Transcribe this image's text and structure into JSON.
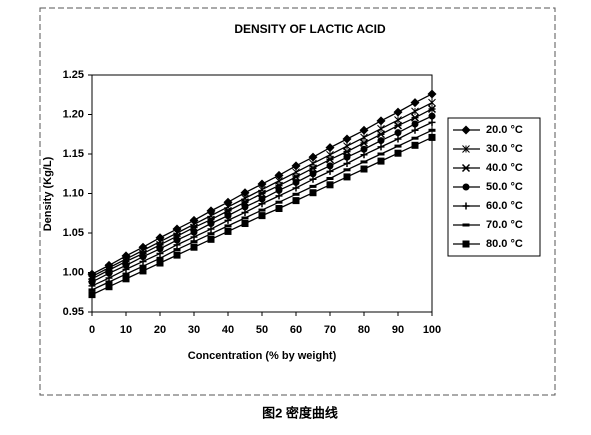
{
  "chart_data": {
    "type": "line",
    "title": "DENSITY OF LACTIC ACID",
    "x_label": "Concentration (% by weight)",
    "y_label": "Density (Kg/L)",
    "caption": "图2  密度曲线",
    "x": [
      0,
      5,
      10,
      15,
      20,
      25,
      30,
      35,
      40,
      45,
      50,
      55,
      60,
      65,
      70,
      75,
      80,
      85,
      90,
      95,
      100
    ],
    "xlim": [
      0,
      100
    ],
    "xticks": [
      0,
      10,
      20,
      30,
      40,
      50,
      60,
      70,
      80,
      90,
      100
    ],
    "ylim": [
      0.95,
      1.25
    ],
    "yticks": [
      0.95,
      {
        "value": 1,
        "label": "1.00"
      },
      1.05,
      {
        "value": 1.1,
        "label": "1.10"
      },
      1.15,
      {
        "value": 1.2,
        "label": "1.20"
      },
      1.25
    ],
    "legend": "right",
    "series": [
      {
        "name": "20.0 °C",
        "color": "#000",
        "marker": "diamond",
        "values": [
          0.998,
          1.009,
          1.021,
          1.032,
          1.044,
          1.055,
          1.066,
          1.078,
          1.089,
          1.101,
          1.112,
          1.123,
          1.135,
          1.146,
          1.158,
          1.169,
          1.18,
          1.192,
          1.203,
          1.215,
          1.226
        ]
      },
      {
        "name": "30.0 °C",
        "color": "#000",
        "marker": "star",
        "values": [
          0.995,
          1.006,
          1.017,
          1.028,
          1.039,
          1.05,
          1.061,
          1.072,
          1.083,
          1.094,
          1.105,
          1.116,
          1.127,
          1.138,
          1.149,
          1.16,
          1.171,
          1.182,
          1.193,
          1.204,
          1.215
        ]
      },
      {
        "name": "40.0 °C",
        "color": "#000",
        "marker": "asterisk",
        "values": [
          0.992,
          1.003,
          1.014,
          1.024,
          1.035,
          1.046,
          1.057,
          1.067,
          1.078,
          1.089,
          1.1,
          1.11,
          1.121,
          1.132,
          1.143,
          1.153,
          1.164,
          1.175,
          1.186,
          1.196,
          1.207
        ]
      },
      {
        "name": "50.0 °C",
        "color": "#000",
        "marker": "circle",
        "values": [
          0.988,
          0.999,
          1.009,
          1.02,
          1.03,
          1.041,
          1.051,
          1.062,
          1.072,
          1.083,
          1.093,
          1.104,
          1.114,
          1.125,
          1.135,
          1.146,
          1.156,
          1.167,
          1.177,
          1.188,
          1.198
        ]
      },
      {
        "name": "60.0 °C",
        "color": "#000",
        "marker": "plus",
        "values": [
          0.983,
          0.993,
          1.004,
          1.014,
          1.024,
          1.035,
          1.045,
          1.055,
          1.066,
          1.076,
          1.087,
          1.097,
          1.107,
          1.118,
          1.128,
          1.138,
          1.149,
          1.159,
          1.169,
          1.18,
          1.19
        ]
      },
      {
        "name": "70.0 °C",
        "color": "#000",
        "marker": "dash",
        "values": [
          0.978,
          0.988,
          0.998,
          1.008,
          1.018,
          1.029,
          1.039,
          1.049,
          1.059,
          1.069,
          1.079,
          1.089,
          1.099,
          1.109,
          1.119,
          1.13,
          1.14,
          1.15,
          1.16,
          1.17,
          1.18
        ]
      },
      {
        "name": "80.0 °C",
        "color": "#000",
        "marker": "square",
        "values": [
          0.972,
          0.982,
          0.992,
          1.002,
          1.012,
          1.022,
          1.032,
          1.042,
          1.052,
          1.062,
          1.072,
          1.081,
          1.091,
          1.101,
          1.111,
          1.121,
          1.131,
          1.141,
          1.151,
          1.161,
          1.171
        ]
      }
    ]
  }
}
